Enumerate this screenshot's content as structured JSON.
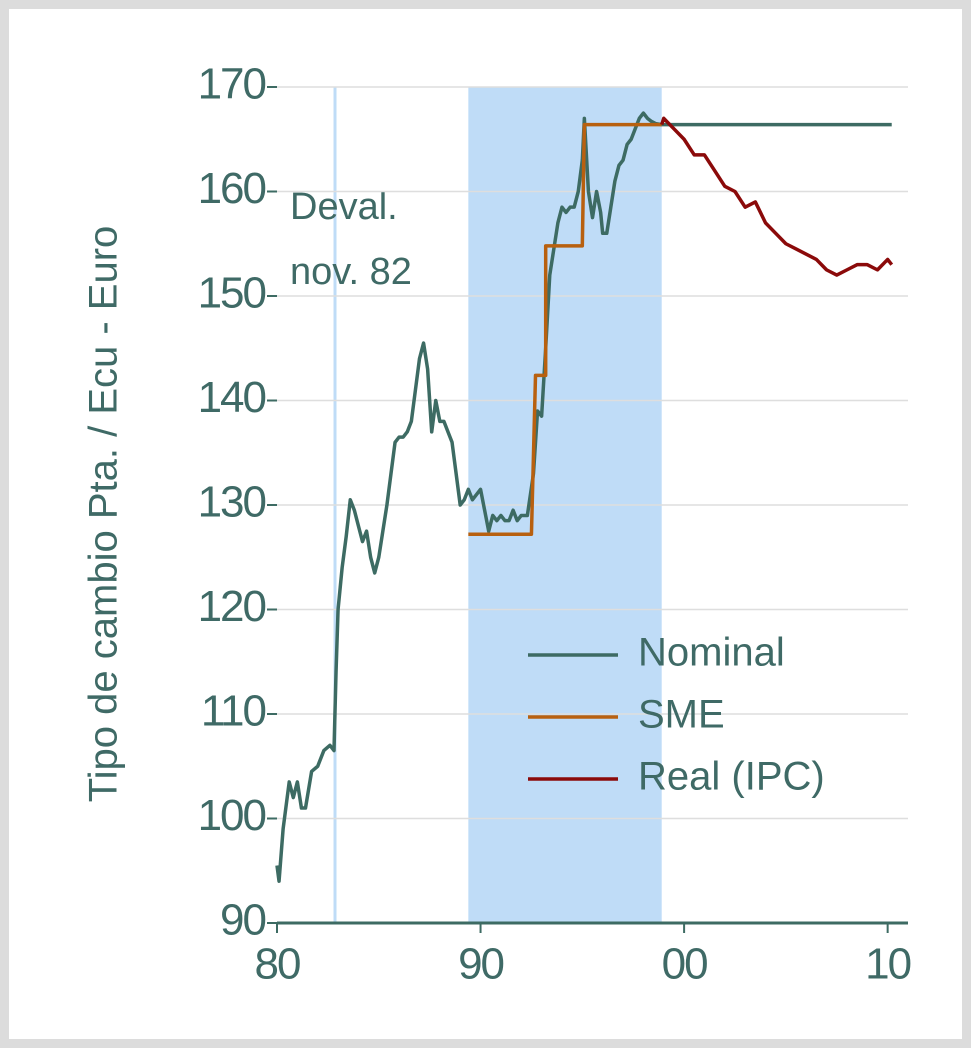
{
  "chart_data": {
    "type": "line",
    "ylabel": "Tipo de cambio Pta. / Ecu - Euro",
    "annotation": [
      "Deval.",
      "nov. 82"
    ],
    "annotation_x": 1982.85,
    "shaded_x": [
      1989.4,
      1998.9
    ],
    "xlim": [
      1980,
      2011
    ],
    "ylim": [
      90,
      170
    ],
    "xticks": [
      {
        "value": 1980,
        "label": "80"
      },
      {
        "value": 1990,
        "label": "90"
      },
      {
        "value": 2000,
        "label": "00"
      },
      {
        "value": 2010,
        "label": "10"
      }
    ],
    "yticks": [
      90,
      100,
      110,
      120,
      130,
      140,
      150,
      160,
      170
    ],
    "grid": true,
    "legend": "center-right",
    "series": [
      {
        "name": "Nominal",
        "color": "#3d6b63",
        "x": [
          1980.0,
          1980.1,
          1980.3,
          1980.6,
          1980.8,
          1981.0,
          1981.2,
          1981.4,
          1981.7,
          1982.0,
          1982.3,
          1982.6,
          1982.8,
          1982.9,
          1983.0,
          1983.2,
          1983.4,
          1983.6,
          1983.8,
          1984.0,
          1984.2,
          1984.4,
          1984.6,
          1984.8,
          1985.0,
          1985.2,
          1985.4,
          1985.6,
          1985.8,
          1986.0,
          1986.2,
          1986.4,
          1986.6,
          1986.8,
          1987.0,
          1987.2,
          1987.4,
          1987.6,
          1987.8,
          1988.0,
          1988.2,
          1988.4,
          1988.6,
          1988.8,
          1989.0,
          1989.2,
          1989.4,
          1989.6,
          1989.8,
          1990.0,
          1990.2,
          1990.4,
          1990.6,
          1990.8,
          1991.0,
          1991.2,
          1991.4,
          1991.6,
          1991.8,
          1992.0,
          1992.3,
          1992.6,
          1992.8,
          1993.0,
          1993.2,
          1993.4,
          1993.6,
          1993.8,
          1994.0,
          1994.2,
          1994.4,
          1994.6,
          1994.8,
          1995.0,
          1995.1,
          1995.3,
          1995.5,
          1995.7,
          1995.9,
          1996.0,
          1996.2,
          1996.4,
          1996.6,
          1996.8,
          1997.0,
          1997.2,
          1997.4,
          1997.6,
          1997.8,
          1998.0,
          1998.2,
          1998.4,
          1998.6,
          1998.9,
          2010.2
        ],
        "values": [
          95.5,
          94,
          99,
          103.5,
          102,
          103.5,
          101,
          101,
          104.5,
          105,
          106.5,
          107,
          106.5,
          114,
          120,
          124,
          127,
          130.5,
          129.5,
          128,
          126.5,
          127.5,
          125,
          123.5,
          125,
          127.5,
          130,
          133,
          136,
          136.5,
          136.5,
          137,
          138,
          141,
          144,
          145.5,
          143,
          137,
          140,
          138,
          138,
          137,
          136,
          133,
          130,
          130.5,
          131.5,
          130.5,
          131,
          131.5,
          129.5,
          127.5,
          129,
          128.5,
          129,
          128.5,
          128.5,
          129.5,
          128.5,
          129,
          129,
          133,
          139,
          138.5,
          145,
          152,
          154.5,
          157,
          158.5,
          158,
          158.5,
          158.5,
          160,
          163,
          167,
          160,
          157.5,
          160,
          158,
          156,
          156,
          158.5,
          161,
          162.5,
          163,
          164.5,
          165,
          166,
          167,
          167.5,
          167,
          166.7,
          166.5,
          166.4,
          166.4
        ]
      },
      {
        "name": "SME",
        "color": "#b8600f",
        "x": [
          1989.4,
          1992.5,
          1992.7,
          1993.2,
          1993.2,
          1995.0,
          1995.1,
          1998.9
        ],
        "values": [
          127.2,
          127.2,
          142.4,
          142.4,
          154.8,
          154.8,
          166.4,
          166.4
        ]
      },
      {
        "name": "Real (IPC)",
        "color": "#8b0a0a",
        "x": [
          1998.9,
          1999.0,
          1999.5,
          2000.0,
          2000.5,
          2001.0,
          2001.5,
          2002.0,
          2002.5,
          2003.0,
          2003.5,
          2004.0,
          2004.5,
          2005.0,
          2005.5,
          2006.0,
          2006.5,
          2007.0,
          2007.5,
          2008.0,
          2008.5,
          2009.0,
          2009.5,
          2010.0,
          2010.2
        ],
        "values": [
          166.4,
          167,
          166,
          165,
          163.5,
          163.5,
          162,
          160.5,
          160,
          158.5,
          159,
          157,
          156,
          155,
          154.5,
          154,
          153.5,
          152.5,
          152,
          152.5,
          153,
          153,
          152.5,
          153.5,
          153
        ]
      }
    ]
  }
}
